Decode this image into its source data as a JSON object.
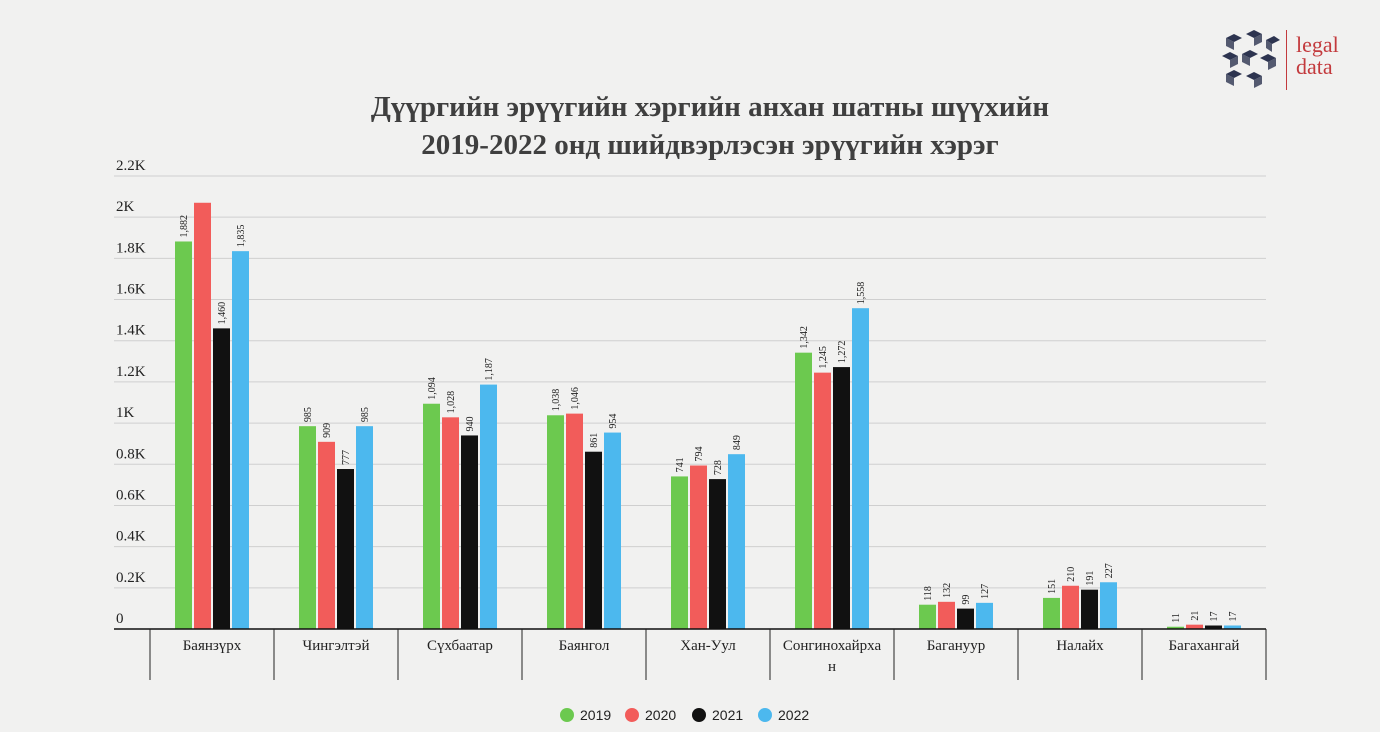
{
  "logo": {
    "line1": "legal",
    "line2": "data"
  },
  "colors": {
    "2019": "#6cc94f",
    "2020": "#f25c5a",
    "2021": "#111111",
    "2022": "#4cb8ee"
  },
  "chart_data": {
    "type": "bar",
    "title_lines": [
      "Дүүргийн эрүүгийн хэргийн анхан шатны шүүхийн",
      "2019-2022 онд шийдвэрлэсэн эрүүгийн хэрэг"
    ],
    "xlabel": "",
    "ylabel": "",
    "ylim": [
      0,
      2200
    ],
    "yticks": [
      0,
      200,
      400,
      600,
      800,
      1000,
      1200,
      1400,
      1600,
      1800,
      2000,
      2200
    ],
    "ytick_labels": [
      "0",
      "0.2K",
      "0.4K",
      "0.6K",
      "0.8K",
      "1K",
      "1.2K",
      "1.4K",
      "1.6K",
      "1.8K",
      "2K",
      "2.2K"
    ],
    "grid": true,
    "legend_position": "bottom-center",
    "categories": [
      "Баянзүрх",
      "Чингэлтэй",
      "Сүхбаатар",
      "Баянгол",
      "Хан-Уул",
      "Сонгинохайрхан",
      "Багануур",
      "Налайх",
      "Багахангай"
    ],
    "category_label_lines": [
      [
        "Баянзүрх"
      ],
      [
        "Чингэлтэй"
      ],
      [
        "Сүхбаатар"
      ],
      [
        "Баянгол"
      ],
      [
        "Хан-Уул"
      ],
      [
        "Сонгинохайрха",
        "н"
      ],
      [
        "Багануур"
      ],
      [
        "Налайх"
      ],
      [
        "Багахангай"
      ]
    ],
    "series": [
      {
        "name": "2019",
        "values": [
          1882,
          985,
          1094,
          1038,
          741,
          1342,
          118,
          151,
          11
        ],
        "labels": [
          "1,882",
          "985",
          "1,094",
          "1,038",
          "741",
          "1,342",
          "118",
          "151",
          "11"
        ]
      },
      {
        "name": "2020",
        "values": [
          2070,
          909,
          1028,
          1046,
          794,
          1245,
          132,
          210,
          21
        ],
        "labels": [
          null,
          "909",
          "1,028",
          "1,046",
          "794",
          "1,245",
          "132",
          "210",
          "21"
        ]
      },
      {
        "name": "2021",
        "values": [
          1460,
          777,
          940,
          861,
          728,
          1272,
          99,
          191,
          17
        ],
        "labels": [
          "1,460",
          "777",
          "940",
          "861",
          "728",
          "1,272",
          "99",
          "191",
          "17"
        ]
      },
      {
        "name": "2022",
        "values": [
          1835,
          985,
          1187,
          954,
          849,
          1558,
          127,
          227,
          17
        ],
        "labels": [
          "1,835",
          "985",
          "1,187",
          "954",
          "849",
          "1,558",
          "127",
          "227",
          "17"
        ]
      }
    ]
  }
}
